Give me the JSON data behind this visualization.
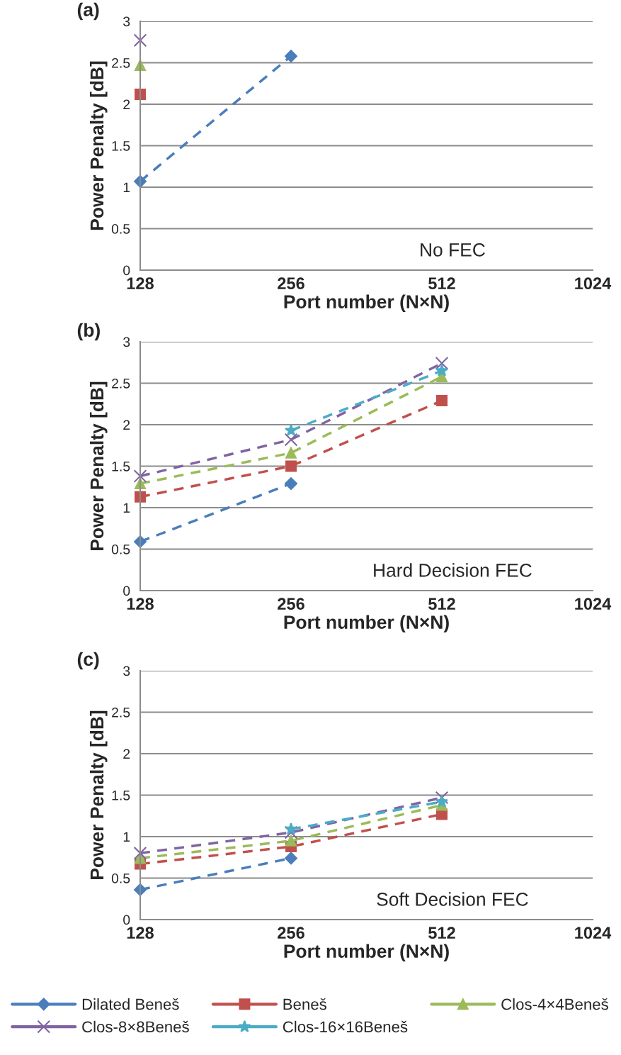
{
  "chart_data": [
    {
      "type": "line",
      "title": "(a)",
      "xlabel": "Port number (N×N)",
      "ylabel": "Power Penalty [dB]",
      "categories": [
        "128",
        "256",
        "512",
        "1024"
      ],
      "ylim": [
        0,
        3
      ],
      "yticks": [
        0,
        0.5,
        1,
        1.5,
        2,
        2.5,
        3
      ],
      "grid": "y",
      "line_style": "dashed",
      "annotations": [
        "No FEC"
      ],
      "series": [
        {
          "color": "#4a7ebb",
          "marker": "diamond",
          "values": [
            1.07,
            2.58,
            null,
            null
          ]
        },
        {
          "color": "#c0504d",
          "marker": "square",
          "values": [
            2.12,
            null,
            null,
            null
          ]
        },
        {
          "color": "#9bbb59",
          "marker": "triangle",
          "values": [
            2.47,
            null,
            null,
            null
          ]
        },
        {
          "color": "#8064a2",
          "marker": "cross",
          "values": [
            2.77,
            null,
            null,
            null
          ]
        }
      ]
    },
    {
      "type": "line",
      "title": "(b)",
      "xlabel": "Port number (N×N)",
      "ylabel": "Power Penalty [dB]",
      "categories": [
        "128",
        "256",
        "512",
        "1024"
      ],
      "ylim": [
        0,
        3
      ],
      "yticks": [
        0,
        0.5,
        1,
        1.5,
        2,
        2.5,
        3
      ],
      "grid": "y",
      "line_style": "dashed",
      "annotations": [
        "Hard Decision FEC"
      ],
      "series": [
        {
          "color": "#4a7ebb",
          "marker": "diamond",
          "values": [
            0.59,
            1.29,
            null,
            null
          ]
        },
        {
          "color": "#c0504d",
          "marker": "square",
          "values": [
            1.13,
            1.5,
            2.29,
            null
          ]
        },
        {
          "color": "#9bbb59",
          "marker": "triangle",
          "values": [
            1.29,
            1.66,
            2.58,
            null
          ]
        },
        {
          "color": "#8064a2",
          "marker": "cross",
          "values": [
            1.38,
            1.82,
            2.74,
            null
          ]
        },
        {
          "color": "#4bacc6",
          "marker": "star",
          "values": [
            null,
            1.93,
            2.65,
            null
          ]
        }
      ]
    },
    {
      "type": "line",
      "title": "(c)",
      "xlabel": "Port number (N×N)",
      "ylabel": "Power Penalty [dB]",
      "categories": [
        "128",
        "256",
        "512",
        "1024"
      ],
      "ylim": [
        0,
        3
      ],
      "yticks": [
        0,
        0.5,
        1,
        1.5,
        2,
        2.5,
        3
      ],
      "grid": "y",
      "line_style": "dashed",
      "annotations": [
        "Soft Decision FEC"
      ],
      "legend": "bottom",
      "series": [
        {
          "name": "Dilated Beneš",
          "color": "#4a7ebb",
          "marker": "diamond",
          "values": [
            0.36,
            0.74,
            null,
            null
          ]
        },
        {
          "name": "Beneš",
          "color": "#c0504d",
          "marker": "square",
          "values": [
            0.67,
            0.88,
            1.27,
            null
          ]
        },
        {
          "name": "Clos-4×4Beneš",
          "color": "#9bbb59",
          "marker": "triangle",
          "values": [
            0.74,
            0.95,
            1.38,
            null
          ]
        },
        {
          "name": "Clos-8×8Beneš",
          "color": "#8064a2",
          "marker": "cross",
          "values": [
            0.8,
            1.05,
            1.47,
            null
          ]
        },
        {
          "name": "Clos-16×16Beneš",
          "color": "#4bacc6",
          "marker": "star",
          "values": [
            null,
            1.09,
            1.42,
            null
          ]
        }
      ]
    }
  ]
}
